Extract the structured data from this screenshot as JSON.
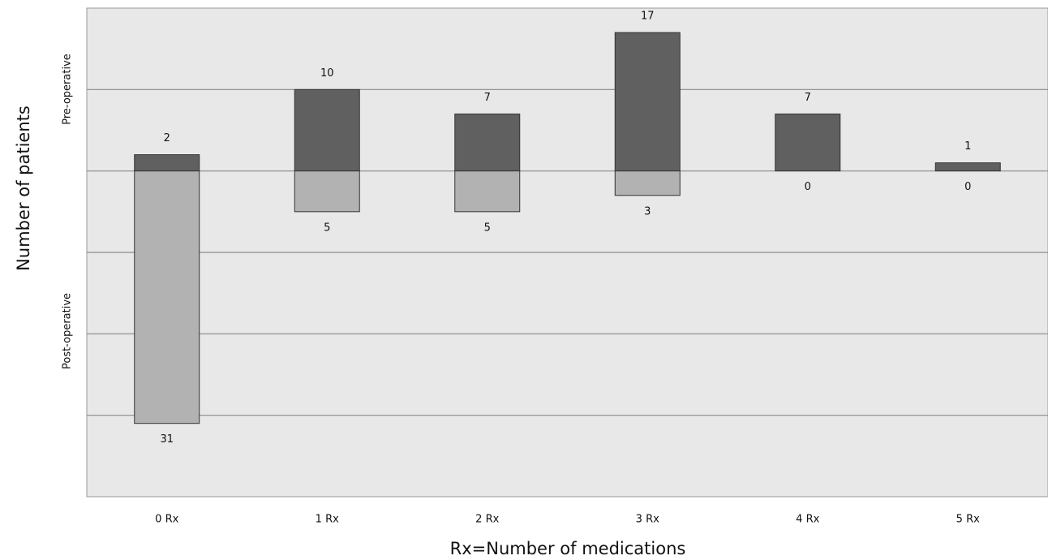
{
  "chart_data": {
    "type": "bar",
    "x_label": "Rx=Number of medications",
    "y_label": "Number of patients",
    "side_labels": [
      "Pre-operative",
      "Post-operative"
    ],
    "categories": [
      "0 Rx",
      "1 Rx",
      "2 Rx",
      "3 Rx",
      "4 Rx",
      "5 Rx"
    ],
    "series": [
      {
        "name": "Pre-operative",
        "color": "#606060",
        "values": [
          2,
          10,
          7,
          17,
          7,
          1
        ]
      },
      {
        "name": "Post-operative",
        "color": "#b2b2b2",
        "values": [
          -31,
          -5,
          -5,
          -3,
          0,
          0
        ],
        "value_labels": [
          "31",
          "5",
          "5",
          "3",
          "0",
          "0"
        ]
      }
    ],
    "ylim": [
      -40,
      20
    ],
    "yticks": [
      -30,
      -20,
      -10,
      0,
      10
    ],
    "grid": true
  }
}
